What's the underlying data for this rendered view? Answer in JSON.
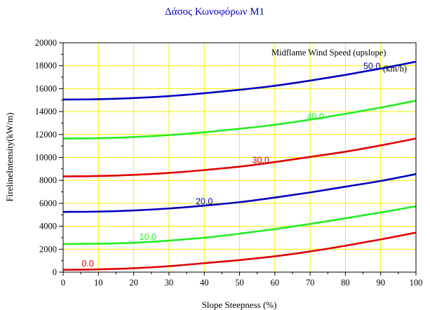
{
  "chart_data": {
    "type": "line",
    "title": "Δάσος Κωνοφόρων Μ1",
    "xlabel": "Slope Steepness (%)",
    "ylabel": "FirelineIntensity(kW/m)",
    "legend_title": "Midflame Wind Speed (upslope)",
    "unit_label": "(km/h)",
    "xlim": [
      0,
      100
    ],
    "ylim": [
      0,
      20000
    ],
    "x_ticks": [
      "0",
      "10",
      "20",
      "30",
      "40",
      "50",
      "60",
      "70",
      "80",
      "90",
      "100"
    ],
    "y_ticks": [
      "0",
      "2000",
      "4000",
      "6000",
      "8000",
      "10000",
      "12000",
      "14000",
      "16000",
      "18000",
      "20000"
    ],
    "grid": true,
    "grid_color": "#f0f000",
    "x": [
      0,
      10,
      20,
      30,
      40,
      50,
      60,
      70,
      80,
      90,
      100
    ],
    "series": [
      {
        "name": "0.0",
        "color": "#e00000",
        "values": [
          200,
          240,
          340,
          520,
          780,
          1050,
          1380,
          1800,
          2300,
          2850,
          3450
        ]
      },
      {
        "name": "10.0",
        "color": "#22ee22",
        "values": [
          2450,
          2480,
          2560,
          2750,
          3000,
          3350,
          3750,
          4200,
          4700,
          5200,
          5750
        ]
      },
      {
        "name": "20.0",
        "color": "#0000c0",
        "values": [
          5250,
          5280,
          5380,
          5550,
          5800,
          6100,
          6500,
          6950,
          7450,
          7950,
          8550
        ]
      },
      {
        "name": "30.0",
        "color": "#e00000",
        "values": [
          8350,
          8380,
          8480,
          8650,
          8900,
          9200,
          9600,
          10050,
          10500,
          11050,
          11650
        ]
      },
      {
        "name": "40.0",
        "color": "#22ee22",
        "values": [
          11650,
          11680,
          11780,
          11950,
          12200,
          12500,
          12850,
          13300,
          13800,
          14350,
          14950
        ]
      },
      {
        "name": "50.0",
        "color": "#0000c0",
        "values": [
          15050,
          15080,
          15180,
          15350,
          15600,
          15900,
          16250,
          16700,
          17200,
          17750,
          18350
        ]
      }
    ],
    "series_labels": [
      {
        "text": "0.0",
        "x": 7,
        "y": 500
      },
      {
        "text": "10.0",
        "x": 24,
        "y": 2800
      },
      {
        "text": "20.0",
        "x": 40,
        "y": 5900
      },
      {
        "text": "30.0",
        "x": 56,
        "y": 9500
      },
      {
        "text": "40.0",
        "x": 71.5,
        "y": 13300
      },
      {
        "text": "50.0",
        "x": 87.5,
        "y": 17700
      }
    ]
  }
}
